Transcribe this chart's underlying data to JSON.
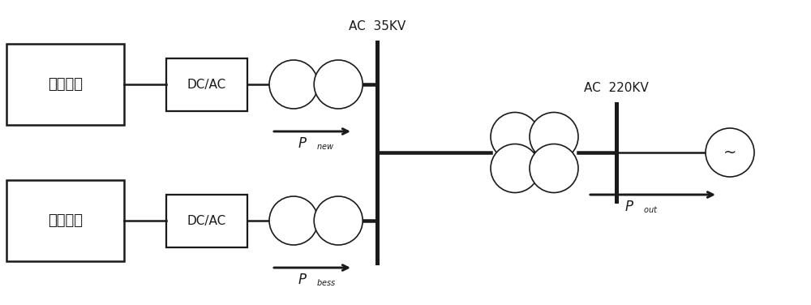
{
  "bg_color": "#ffffff",
  "line_color": "#1a1a1a",
  "lw": 1.8,
  "thin_lw": 1.2,
  "box1_label": "光伏电站",
  "box2_label": "储能电站",
  "box3_label": "DC/AC",
  "box4_label": "DC/AC",
  "label_ac35": "AC  35KV",
  "label_ac220": "AC  220KV",
  "tilde": "~",
  "figsize": [
    10.0,
    3.76
  ],
  "dpi": 100,
  "xlim": [
    0,
    10
  ],
  "ylim": [
    0,
    3.76
  ],
  "y_top": 2.72,
  "y_bot": 1.04,
  "y_mid": 1.88
}
